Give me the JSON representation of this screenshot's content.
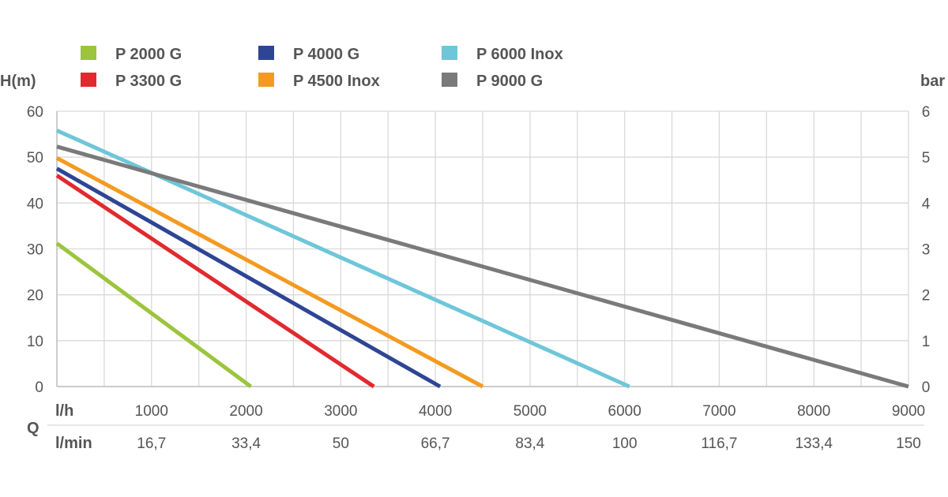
{
  "chart_data": {
    "type": "line",
    "title": "",
    "ylabel": "H(m)",
    "ylabel_right": "bar",
    "xlabel": "Q",
    "xunit_primary": "l/h",
    "xunit_secondary": "l/min",
    "xlim": [
      0,
      9000
    ],
    "ylim": [
      0,
      60
    ],
    "ylim_right": [
      0,
      6
    ],
    "y_ticks": [
      "0",
      "10",
      "20",
      "30",
      "40",
      "50",
      "60"
    ],
    "y_ticks_right": [
      "0",
      "1",
      "2",
      "3",
      "4",
      "5",
      "6"
    ],
    "x_ticks": [
      {
        "lh": "1000",
        "lmin": "16,7"
      },
      {
        "lh": "2000",
        "lmin": "33,4"
      },
      {
        "lh": "3000",
        "lmin": "50"
      },
      {
        "lh": "4000",
        "lmin": "66,7"
      },
      {
        "lh": "5000",
        "lmin": "83,4"
      },
      {
        "lh": "6000",
        "lmin": "100"
      },
      {
        "lh": "7000",
        "lmin": "116,7"
      },
      {
        "lh": "8000",
        "lmin": "133,4"
      },
      {
        "lh": "9000",
        "lmin": "150"
      }
    ],
    "grid": true,
    "legend_position": "top",
    "series": [
      {
        "name": "P 2000 G",
        "color": "#9bc53d",
        "points": [
          [
            0,
            31.2
          ],
          [
            2050,
            0
          ]
        ]
      },
      {
        "name": "P 3300 G",
        "color": "#e02a2e",
        "points": [
          [
            0,
            46
          ],
          [
            3350,
            0
          ]
        ]
      },
      {
        "name": "P 4000 G",
        "color": "#2e4594",
        "points": [
          [
            0,
            47.5
          ],
          [
            4050,
            0
          ]
        ]
      },
      {
        "name": "P 4500 Inox",
        "color": "#f49a20",
        "points": [
          [
            0,
            49.8
          ],
          [
            4500,
            0
          ]
        ]
      },
      {
        "name": "P 6000 Inox",
        "color": "#6ec6d9",
        "points": [
          [
            0,
            55.8
          ],
          [
            6050,
            0
          ]
        ]
      },
      {
        "name": "P 9000 G",
        "color": "#7a7a7a",
        "points": [
          [
            0,
            52.3
          ],
          [
            9000,
            0
          ]
        ]
      }
    ],
    "legend_order": [
      "P 2000 G",
      "P 4000 G",
      "P 6000 Inox",
      "P 3300 G",
      "P 4500 Inox",
      "P 9000 G"
    ]
  }
}
